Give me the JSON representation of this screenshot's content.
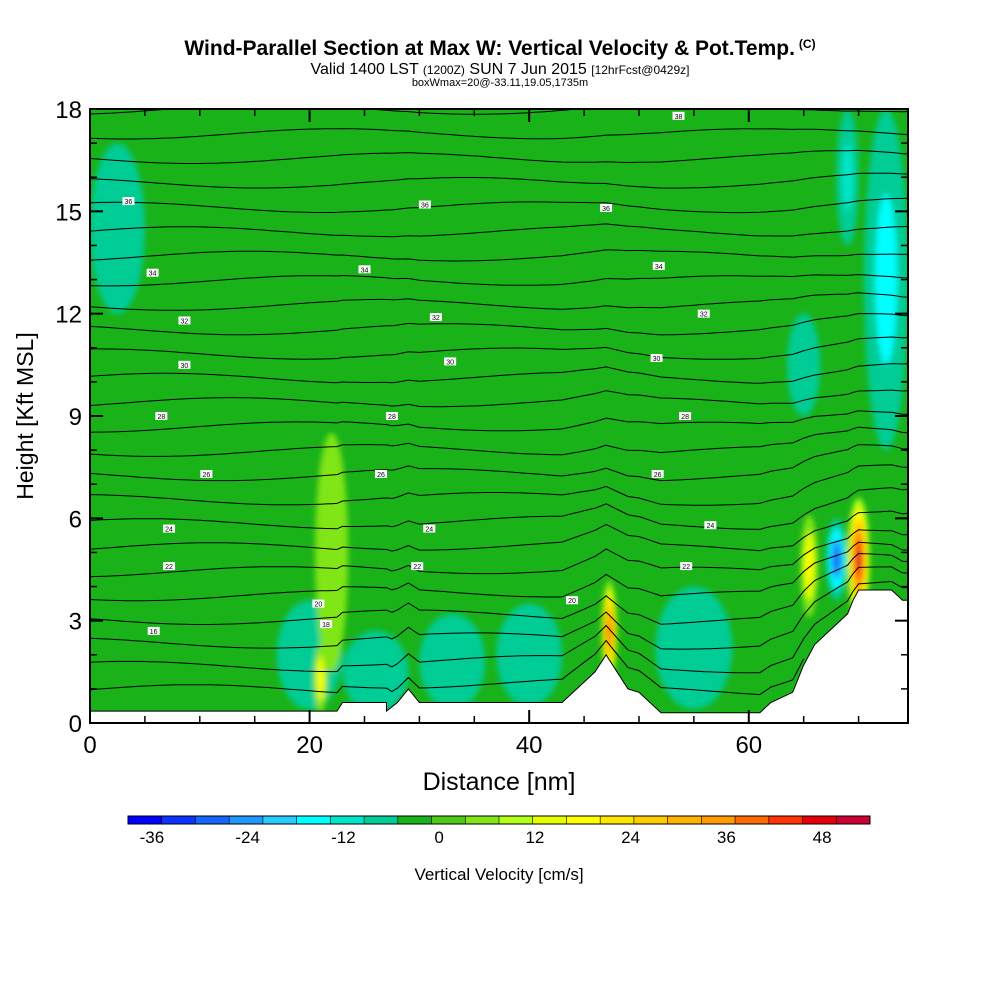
{
  "title": {
    "main": "Wind-Parallel Section at Max W: Vertical Velocity & Pot.Temp.",
    "copyright": "(C)",
    "valid_prefix": "Valid 1400 LST",
    "valid_utc": "(1200Z)",
    "valid_date": "SUN 7 Jun 2015",
    "forecast": "[12hrFcst@0429z]",
    "box_info": "boxWmax=20@-33.11,19.05,1735m"
  },
  "chart_data": {
    "type": "contour",
    "xlabel": "Distance [nm]",
    "ylabel": "Height [Kft MSL]",
    "xlim": [
      0,
      74.5
    ],
    "ylim": [
      0,
      18
    ],
    "xticks": [
      "0",
      "20",
      "40",
      "60"
    ],
    "yticks": [
      "0",
      "3",
      "6",
      "9",
      "12",
      "15",
      "18"
    ],
    "background_w_color": "#19b219",
    "colorbar": {
      "label": "Vertical Velocity [cm/s]",
      "tick_labels": [
        "-36",
        "-24",
        "-12",
        "0",
        "12",
        "24",
        "36",
        "48"
      ],
      "tick_values": [
        -36,
        -24,
        -12,
        0,
        12,
        24,
        36,
        48
      ],
      "min": -39,
      "max": 54,
      "colors": [
        "#0000ff",
        "#0a33ff",
        "#1466ff",
        "#1e99ff",
        "#28ccff",
        "#00ffff",
        "#00e6c8",
        "#00cc96",
        "#19b219",
        "#4ccc19",
        "#80e619",
        "#b3ff19",
        "#e6ff00",
        "#ffff00",
        "#ffe600",
        "#ffcc00",
        "#ffb300",
        "#ff9900",
        "#ff6a00",
        "#ff3300",
        "#e6000a",
        "#cc0033"
      ]
    },
    "terrain_profile": [
      [
        0,
        0.35
      ],
      [
        4,
        0.35
      ],
      [
        8,
        0.35
      ],
      [
        12,
        0.35
      ],
      [
        16,
        0.35
      ],
      [
        20,
        0.35
      ],
      [
        21,
        0.35
      ],
      [
        22.5,
        0.35
      ],
      [
        23,
        0.6
      ],
      [
        25,
        0.6
      ],
      [
        27,
        0.6
      ],
      [
        27,
        0.35
      ],
      [
        28,
        0.6
      ],
      [
        29,
        1.0
      ],
      [
        30,
        0.6
      ],
      [
        31,
        0.6
      ],
      [
        33,
        0.6
      ],
      [
        35,
        0.6
      ],
      [
        38,
        0.6
      ],
      [
        40,
        0.6
      ],
      [
        43,
        0.6
      ],
      [
        44,
        0.9
      ],
      [
        45,
        1.2
      ],
      [
        46,
        1.5
      ],
      [
        47,
        2.0
      ],
      [
        48,
        1.5
      ],
      [
        49,
        1.0
      ],
      [
        50,
        0.9
      ],
      [
        51,
        0.6
      ],
      [
        52,
        0.3
      ],
      [
        54,
        0.3
      ],
      [
        56,
        0.3
      ],
      [
        58,
        0.3
      ],
      [
        60,
        0.3
      ],
      [
        61,
        0.3
      ],
      [
        62,
        0.6
      ],
      [
        64,
        0.9
      ],
      [
        65,
        1.7
      ],
      [
        66,
        2.3
      ],
      [
        67,
        2.6
      ],
      [
        68,
        2.9
      ],
      [
        69,
        3.2
      ],
      [
        69.5,
        3.6
      ],
      [
        70,
        3.9
      ],
      [
        71,
        3.9
      ],
      [
        73,
        3.9
      ],
      [
        74,
        3.6
      ],
      [
        74.5,
        3.6
      ]
    ],
    "theta_contours": [
      {
        "label": "16",
        "x": 5.8,
        "y": 2.7
      },
      {
        "label": "18",
        "x": 21.5,
        "y": 2.9
      },
      {
        "label": "20",
        "x": 20.8,
        "y": 3.5
      },
      {
        "label": "20",
        "x": 43.9,
        "y": 3.6
      },
      {
        "label": "22",
        "x": 7.2,
        "y": 4.6
      },
      {
        "label": "22",
        "x": 29.8,
        "y": 4.6
      },
      {
        "label": "22",
        "x": 54.3,
        "y": 4.6
      },
      {
        "label": "24",
        "x": 7.2,
        "y": 5.7
      },
      {
        "label": "24",
        "x": 30.9,
        "y": 5.7
      },
      {
        "label": "24",
        "x": 56.5,
        "y": 5.8
      },
      {
        "label": "26",
        "x": 10.6,
        "y": 7.3
      },
      {
        "label": "26",
        "x": 26.5,
        "y": 7.3
      },
      {
        "label": "26",
        "x": 51.7,
        "y": 7.3
      },
      {
        "label": "28",
        "x": 6.5,
        "y": 9.0
      },
      {
        "label": "28",
        "x": 27.5,
        "y": 9.0
      },
      {
        "label": "28",
        "x": 54.2,
        "y": 9.0
      },
      {
        "label": "30",
        "x": 8.6,
        "y": 10.5
      },
      {
        "label": "30",
        "x": 32.8,
        "y": 10.6
      },
      {
        "label": "30",
        "x": 51.6,
        "y": 10.7
      },
      {
        "label": "32",
        "x": 8.6,
        "y": 11.8
      },
      {
        "label": "32",
        "x": 31.5,
        "y": 11.9
      },
      {
        "label": "32",
        "x": 55.9,
        "y": 12.0
      },
      {
        "label": "34",
        "x": 5.7,
        "y": 13.2
      },
      {
        "label": "34",
        "x": 25.0,
        "y": 13.3
      },
      {
        "label": "34",
        "x": 51.8,
        "y": 13.4
      },
      {
        "label": "36",
        "x": 3.5,
        "y": 15.3
      },
      {
        "label": "36",
        "x": 30.5,
        "y": 15.2
      },
      {
        "label": "36",
        "x": 47.0,
        "y": 15.1
      },
      {
        "label": "38",
        "x": 53.6,
        "y": 17.8
      }
    ],
    "w_features": [
      {
        "x": 2.5,
        "y": 14.5,
        "rx": 2.5,
        "ry": 2.5,
        "value": -8
      },
      {
        "x": 20.0,
        "y": 2.0,
        "rx": 3.0,
        "ry": 1.6,
        "value": -8
      },
      {
        "x": 26.0,
        "y": 1.5,
        "rx": 3.0,
        "ry": 1.2,
        "value": -6
      },
      {
        "x": 33.0,
        "y": 1.8,
        "rx": 3.0,
        "ry": 1.4,
        "value": -6
      },
      {
        "x": 40.0,
        "y": 2.0,
        "rx": 3.0,
        "ry": 1.5,
        "value": -7
      },
      {
        "x": 55.0,
        "y": 2.2,
        "rx": 3.5,
        "ry": 1.8,
        "value": -7
      },
      {
        "x": 65.0,
        "y": 10.5,
        "rx": 1.5,
        "ry": 1.5,
        "value": -8
      },
      {
        "x": 72.5,
        "y": 13.0,
        "rx": 2.0,
        "ry": 5.0,
        "value": -14
      },
      {
        "x": 69.0,
        "y": 16.0,
        "rx": 1.0,
        "ry": 2.0,
        "value": -12
      },
      {
        "x": 22.0,
        "y": 5.0,
        "rx": 1.5,
        "ry": 3.5,
        "value": 4
      },
      {
        "x": 21.0,
        "y": 1.3,
        "rx": 0.6,
        "ry": 1.0,
        "value": 20
      },
      {
        "x": 47.3,
        "y": 2.7,
        "rx": 0.7,
        "ry": 1.5,
        "value": 44
      },
      {
        "x": 68.0,
        "y": 4.8,
        "rx": 1.0,
        "ry": 1.2,
        "value": -30
      },
      {
        "x": 65.5,
        "y": 4.6,
        "rx": 0.8,
        "ry": 1.5,
        "value": 20
      },
      {
        "x": 70.0,
        "y": 4.8,
        "rx": 1.0,
        "ry": 1.8,
        "value": 50
      }
    ]
  }
}
